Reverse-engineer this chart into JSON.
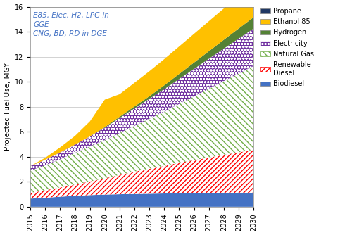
{
  "years": [
    2015,
    2016,
    2017,
    2018,
    2019,
    2020,
    2021,
    2022,
    2023,
    2024,
    2025,
    2026,
    2027,
    2028,
    2029,
    2030
  ],
  "biodiesel": [
    0.65,
    0.72,
    0.8,
    0.87,
    0.93,
    0.97,
    1.0,
    1.02,
    1.04,
    1.06,
    1.07,
    1.08,
    1.09,
    1.1,
    1.1,
    1.1
  ],
  "renewable_diesel": [
    0.45,
    0.6,
    0.75,
    0.9,
    1.1,
    1.3,
    1.55,
    1.8,
    2.0,
    2.2,
    2.45,
    2.65,
    2.85,
    3.05,
    3.25,
    3.45
  ],
  "natural_gas": [
    1.8,
    2.0,
    2.25,
    2.55,
    2.8,
    3.05,
    3.35,
    3.65,
    4.0,
    4.35,
    4.7,
    5.1,
    5.5,
    5.9,
    6.3,
    6.7
  ],
  "electricity": [
    0.35,
    0.45,
    0.55,
    0.65,
    0.8,
    1.0,
    1.2,
    1.4,
    1.6,
    1.8,
    2.0,
    2.2,
    2.4,
    2.6,
    2.8,
    3.0
  ],
  "hydrogen": [
    0.0,
    0.0,
    0.0,
    0.0,
    0.0,
    0.05,
    0.1,
    0.15,
    0.2,
    0.3,
    0.4,
    0.5,
    0.6,
    0.7,
    0.8,
    0.9
  ],
  "ethanol85": [
    0.0,
    0.15,
    0.4,
    0.7,
    1.2,
    2.2,
    1.8,
    1.9,
    2.0,
    2.1,
    2.2,
    2.3,
    2.4,
    2.5,
    2.6,
    2.6
  ],
  "propane": [
    0.0,
    0.0,
    0.0,
    0.0,
    0.0,
    0.0,
    0.0,
    0.0,
    0.0,
    0.0,
    0.0,
    0.0,
    0.0,
    0.0,
    0.1,
    0.2
  ],
  "ylabel": "Projected Fuel Use, MGY",
  "ylim": [
    0,
    16
  ],
  "annotation": "E85, Elec, H2, LPG in\nGGE\nCNG, BD, RD in DGE",
  "colors": {
    "biodiesel": "#4472C4",
    "renewable_diesel": "#FF0000",
    "natural_gas": "#70AD47",
    "electricity": "#7030A0",
    "hydrogen": "#548235",
    "ethanol85": "#FFC000",
    "propane": "#203864"
  }
}
